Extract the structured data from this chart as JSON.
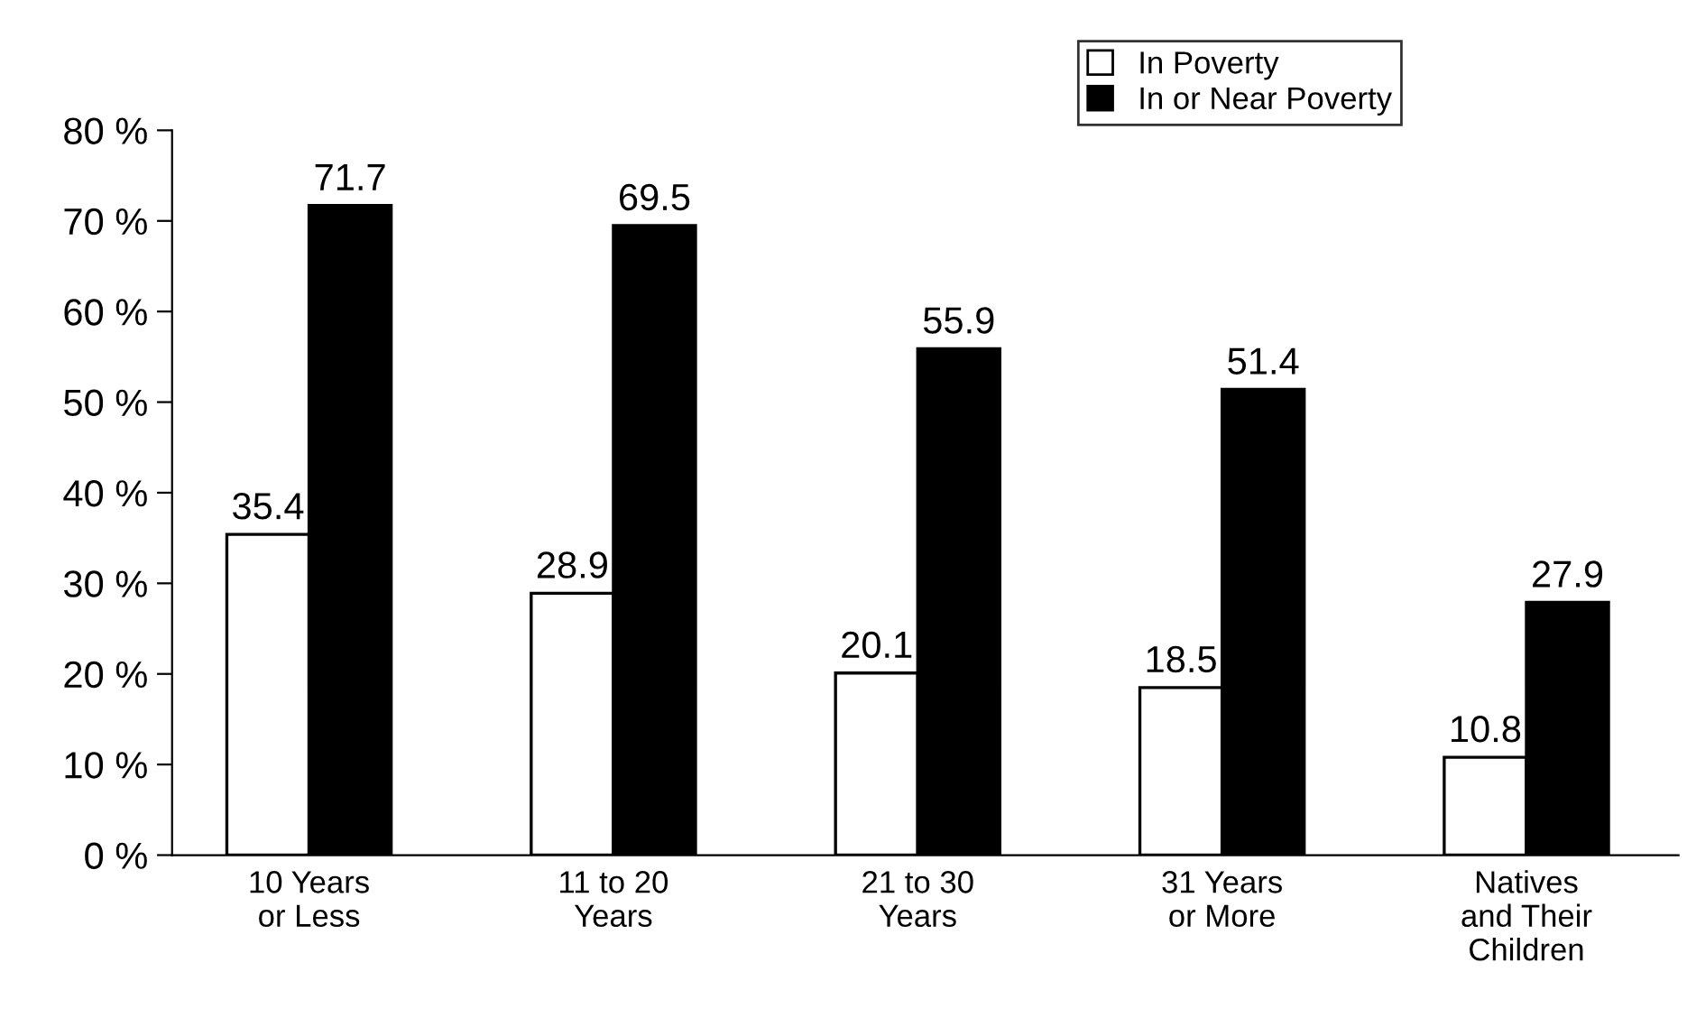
{
  "chart_data": {
    "type": "bar",
    "categories": [
      "10 Years\nor Less",
      "11 to 20\nYears",
      "21 to 30\nYears",
      "31 Years\nor More",
      "Natives\nand Their\nChildren"
    ],
    "series": [
      {
        "name": "In Poverty",
        "color": "#ffffff",
        "values": [
          35.4,
          28.9,
          20.1,
          18.5,
          10.8
        ]
      },
      {
        "name": "In or Near Poverty",
        "color": "#000000",
        "values": [
          71.7,
          69.5,
          55.9,
          51.4,
          27.9
        ]
      }
    ],
    "ylim": [
      0,
      80
    ],
    "yticks": [
      {
        "value": 0,
        "label": "0 %"
      },
      {
        "value": 10,
        "label": "10 %"
      },
      {
        "value": 20,
        "label": "20 %"
      },
      {
        "value": 30,
        "label": "30 %"
      },
      {
        "value": 40,
        "label": "40 %"
      },
      {
        "value": 50,
        "label": "50 %"
      },
      {
        "value": 60,
        "label": "60 %"
      },
      {
        "value": 70,
        "label": "70 %"
      },
      {
        "value": 80,
        "label": "80 %"
      }
    ],
    "data_labels": true,
    "legend": "top right",
    "grid": false
  }
}
